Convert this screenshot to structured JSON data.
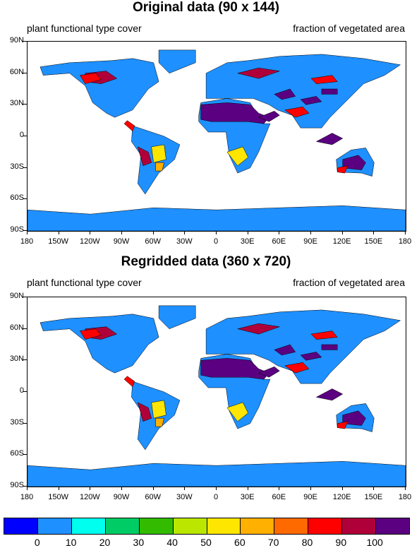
{
  "panels": [
    {
      "title": "Original data (90 x 144)",
      "left_subtitle": "plant functional type cover",
      "right_subtitle": "fraction of vegetated area"
    },
    {
      "title": "Regridded data (360 x 720)",
      "left_subtitle": "plant functional type cover",
      "right_subtitle": "fraction of vegetated area"
    }
  ],
  "lat_labels": [
    "90N",
    "60N",
    "30N",
    "0",
    "30S",
    "60S",
    "90S"
  ],
  "lon_labels": [
    "180",
    "150W",
    "120W",
    "90W",
    "60W",
    "30W",
    "0",
    "30E",
    "60E",
    "90E",
    "120E",
    "150E",
    "180"
  ],
  "colorbar": {
    "labels": [
      "0",
      "10",
      "20",
      "30",
      "40",
      "50",
      "60",
      "70",
      "80",
      "90",
      "100"
    ],
    "colors": [
      "#0000ff",
      "#1e90ff",
      "#00ffee",
      "#00cc66",
      "#33bb00",
      "#bbe600",
      "#ffe600",
      "#ffb000",
      "#ff6a00",
      "#ff0000",
      "#b0003a",
      "#5a0080"
    ]
  },
  "chart_data": {
    "type": "heatmap",
    "variable": "plant functional type cover",
    "units": "fraction of vegetated area",
    "xlim": [
      -180,
      180
    ],
    "ylim": [
      -90,
      90
    ],
    "levels": [
      0,
      10,
      20,
      30,
      40,
      50,
      60,
      70,
      80,
      90,
      100
    ]
  }
}
